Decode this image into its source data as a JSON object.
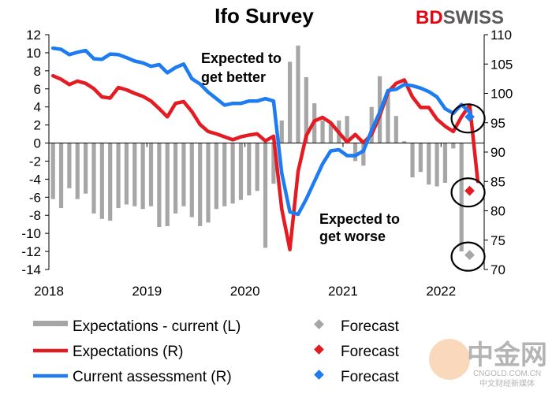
{
  "brand": {
    "part1": "BD",
    "part2": "SWISS",
    "color1": "#e30613",
    "color2": "#5a5a5a"
  },
  "watermark": {
    "mark": "中金网",
    "line1": "CNGOLD.COM.CN",
    "line2": "中文财经新媒体"
  },
  "chart_data": {
    "type": "bar+line",
    "title": "Ifo Survey",
    "x_start": 2018.0,
    "x_end": 2022.44,
    "x_ticks": [
      "2018",
      "2019",
      "2020",
      "2021",
      "2022"
    ],
    "left_axis": {
      "min": -14,
      "max": 12,
      "ticks": [
        "12",
        "10",
        "8",
        "6",
        "4",
        "2",
        "0",
        "-2",
        "-4",
        "-6",
        "-8",
        "-10",
        "-12",
        "-14"
      ]
    },
    "right_axis": {
      "min": 70,
      "max": 110,
      "ticks": [
        "110",
        "105",
        "100",
        "95",
        "90",
        "85",
        "80",
        "75",
        "70"
      ]
    },
    "annotations": [
      {
        "text_lines": [
          "Expected to",
          "get better"
        ]
      },
      {
        "text_lines": [
          "Expected to",
          "get worse"
        ]
      }
    ],
    "series": [
      {
        "name": "Expectations - current (L)",
        "axis": "left",
        "kind": "bar",
        "color": "#a6a6a6",
        "values": [
          -6.2,
          -7.2,
          -5,
          -6.2,
          -5.6,
          -7.8,
          -8.4,
          -8.6,
          -7.2,
          -6.8,
          -7,
          -7.3,
          -7,
          -9.3,
          -9.2,
          -7.8,
          -7,
          -8.2,
          -9.2,
          -8.8,
          -7.3,
          -7,
          -6.7,
          -6.3,
          -5.8,
          -5.3,
          -11.6,
          -4.5,
          2.5,
          9,
          10.8,
          7.3,
          4.4,
          2.5,
          2.2,
          2.5,
          3,
          -2,
          -2.5,
          4,
          7.4,
          5.5,
          3,
          0.2,
          -3.8,
          -3.2,
          -4.6,
          -4.8,
          -4.4,
          -0.6,
          -12
        ]
      },
      {
        "name": "Expectations (R)",
        "axis": "right",
        "kind": "line",
        "color": "#e41b23",
        "values": [
          103,
          102.4,
          101.5,
          102.1,
          101.7,
          100.8,
          99.4,
          99.2,
          101,
          100.6,
          100,
          99.5,
          98.7,
          97.4,
          96,
          98.3,
          98.6,
          96.9,
          94.7,
          93.5,
          93.1,
          92.6,
          92.1,
          92.6,
          92.9,
          93.1,
          91.9,
          92.7,
          80.3,
          73.4,
          86.7,
          92.8,
          95.3,
          95.9,
          95,
          93.3,
          91.7,
          93,
          91.6,
          93,
          96.2,
          100.2,
          101.7,
          102.3,
          99.4,
          97.6,
          97.6,
          95.6,
          94.4,
          93.5,
          96,
          98,
          85
        ]
      },
      {
        "name": "Current assessment (R)",
        "axis": "right",
        "kind": "line",
        "color": "#1e7cf2",
        "values": [
          107.7,
          107.5,
          106.6,
          107,
          107.3,
          105.9,
          105.8,
          106.7,
          106.6,
          106.1,
          105.5,
          105.2,
          104.6,
          104.9,
          103.5,
          104.4,
          105,
          102.5,
          101.6,
          100.2,
          99.1,
          98,
          98.3,
          98.3,
          98.7,
          98.7,
          99.1,
          98.7,
          86.4,
          79.8,
          79.4,
          82,
          85,
          88,
          90.2,
          90.4,
          89.4,
          89.4,
          90.2,
          93.7,
          96.8,
          100.5,
          100.7,
          101.5,
          101.3,
          100.9,
          100.3,
          99.4,
          97.4,
          96.6,
          98.1,
          96.8
        ]
      }
    ],
    "forecast": [
      {
        "name": "Forecast",
        "axis": "left",
        "value": -12.4,
        "color": "#a6a6a6"
      },
      {
        "name": "Forecast",
        "axis": "right",
        "value": 83.4,
        "color": "#e41b23"
      },
      {
        "name": "Forecast",
        "axis": "right",
        "value": 96,
        "color": "#1e7cf2"
      }
    ]
  }
}
